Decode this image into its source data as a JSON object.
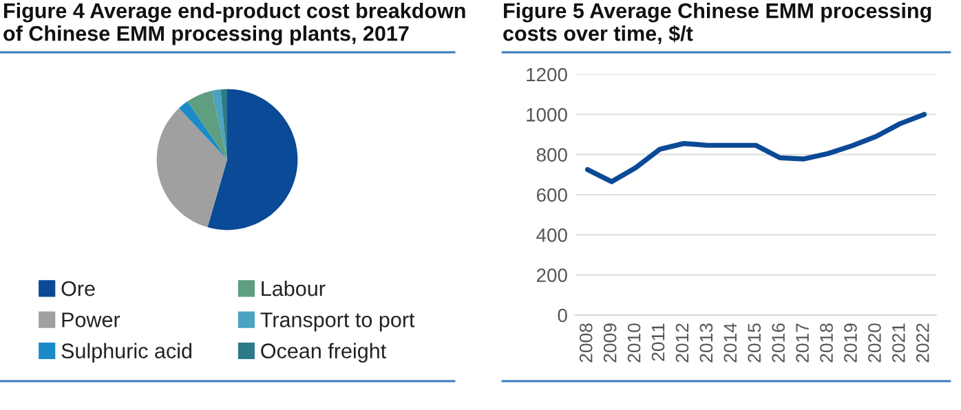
{
  "chart_data": [
    {
      "type": "pie",
      "title": "Figure 4 Average end-product cost breakdown\nof Chinese EMM processing plants, 2017",
      "categories": [
        "Ore",
        "Power",
        "Sulphuric acid",
        "Labour",
        "Transport to port",
        "Ocean freight"
      ],
      "values": [
        54.5,
        33.5,
        2.5,
        6,
        2,
        1.5
      ],
      "colors": [
        "#0a4a96",
        "#a0a0a0",
        "#1a8bc8",
        "#5f9e7e",
        "#4aa3c0",
        "#2f7a88"
      ],
      "legend": "bottom"
    },
    {
      "type": "line",
      "title": "Figure 5 Average Chinese EMM processing\ncosts over time, $/t",
      "categories": [
        "2008",
        "2009",
        "2010",
        "2011",
        "2012",
        "2013",
        "2014",
        "2015",
        "2016",
        "2017",
        "2018",
        "2019",
        "2020",
        "2021",
        "2022"
      ],
      "series": [
        {
          "color": "#0a4a96",
          "values": [
            725,
            665,
            734,
            826,
            855,
            846,
            846,
            846,
            784,
            778,
            805,
            844,
            890,
            954,
            1000
          ]
        }
      ],
      "ylim": [
        0,
        1200
      ],
      "yticks": [
        0,
        200,
        400,
        600,
        800,
        1000,
        1200
      ],
      "grid": "y",
      "legend": false,
      "marker": "none",
      "line_style": "solid"
    }
  ]
}
